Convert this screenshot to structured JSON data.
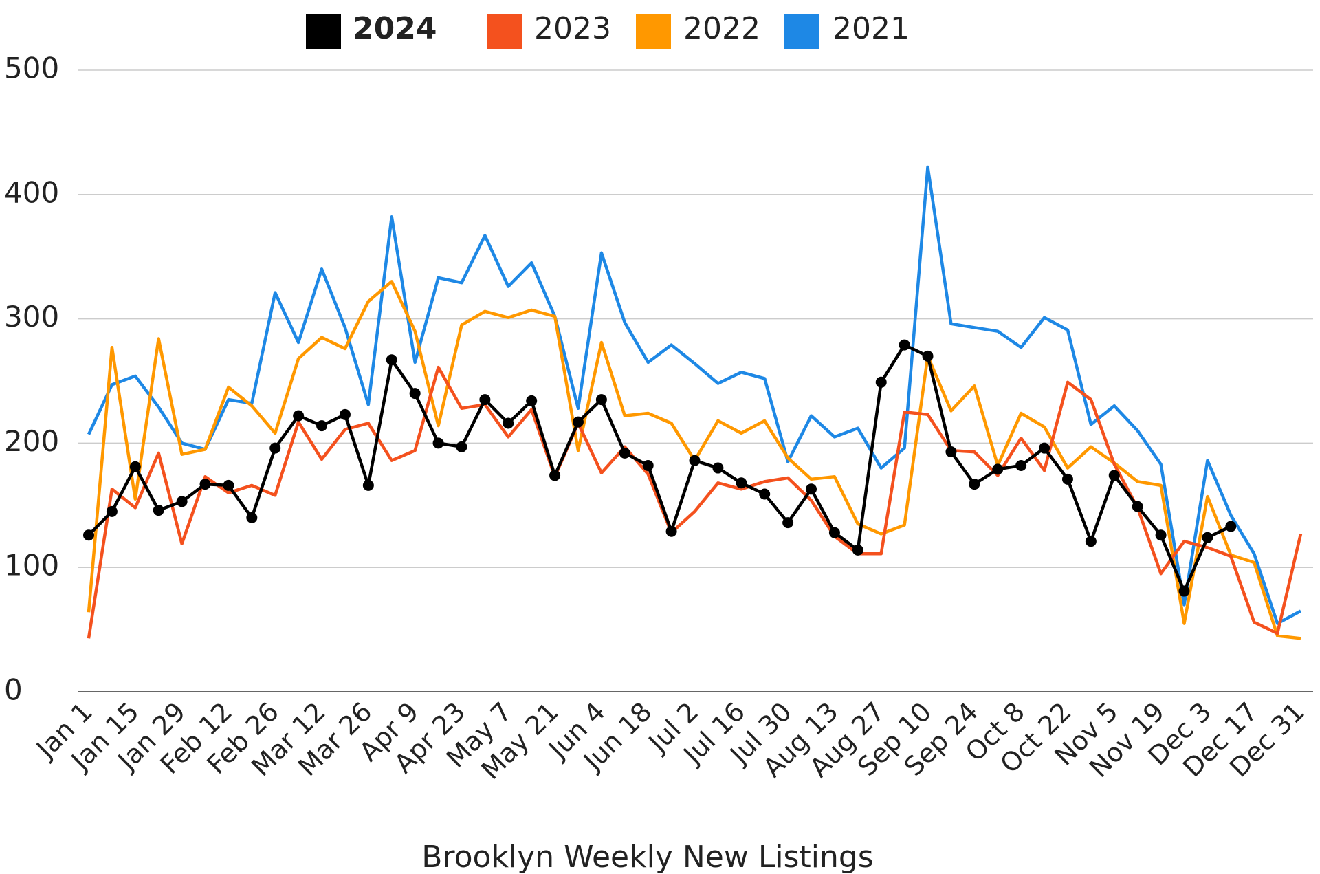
{
  "chart_data": {
    "type": "line",
    "title": "Brooklyn Weekly New Listings",
    "categories": [
      "Jan 1",
      null,
      "Jan 15",
      null,
      "Jan 29",
      null,
      "Feb 12",
      null,
      "Feb 26",
      null,
      "Mar 12",
      null,
      "Mar 26",
      null,
      "Apr 9",
      null,
      "Apr 23",
      null,
      "May 7",
      null,
      "May 21",
      null,
      "Jun 4",
      null,
      "Jun 18",
      null,
      "Jul 2",
      null,
      "Jul 16",
      null,
      "Jul 30",
      null,
      "Aug 13",
      null,
      "Aug 27",
      null,
      "Sep 10",
      null,
      "Sep 24",
      null,
      "Oct 8",
      null,
      "Oct 22",
      null,
      "Nov 5",
      null,
      "Nov 19",
      null,
      "Dec 3",
      null,
      "Dec 17",
      null,
      "Dec 31"
    ],
    "series": [
      {
        "name": "2024",
        "color": "#000000",
        "markers": true,
        "values": [
          126,
          145,
          181,
          146,
          153,
          167,
          166,
          140,
          196,
          222,
          214,
          223,
          166,
          267,
          240,
          200,
          197,
          235,
          216,
          234,
          174,
          217,
          235,
          192,
          182,
          129,
          186,
          180,
          168,
          159,
          136,
          163,
          128,
          114,
          249,
          279,
          270,
          193,
          167,
          179,
          182,
          196,
          171,
          121,
          174,
          149,
          126,
          81,
          124,
          133,
          null,
          null,
          null
        ]
      },
      {
        "name": "2023",
        "color": "#f4511e",
        "markers": false,
        "values": [
          43,
          163,
          148,
          192,
          119,
          173,
          160,
          166,
          158,
          217,
          187,
          211,
          216,
          186,
          194,
          261,
          228,
          231,
          205,
          227,
          173,
          216,
          176,
          197,
          175,
          128,
          145,
          168,
          163,
          169,
          172,
          154,
          125,
          111,
          111,
          225,
          223,
          194,
          193,
          174,
          204,
          178,
          249,
          235,
          183,
          148,
          95,
          121,
          116,
          109,
          56,
          47,
          127
        ]
      },
      {
        "name": "2022",
        "color": "#ff9800",
        "markers": false,
        "values": [
          64,
          277,
          155,
          284,
          191,
          195,
          245,
          230,
          208,
          268,
          285,
          276,
          314,
          330,
          290,
          214,
          295,
          306,
          301,
          307,
          302,
          194,
          281,
          222,
          224,
          216,
          186,
          218,
          208,
          218,
          188,
          171,
          173,
          135,
          127,
          134,
          270,
          226,
          246,
          182,
          224,
          213,
          180,
          197,
          184,
          169,
          166,
          55,
          157,
          110,
          104,
          45,
          43
        ]
      },
      {
        "name": "2021",
        "color": "#1e88e5",
        "markers": false,
        "values": [
          207,
          247,
          254,
          229,
          200,
          195,
          235,
          232,
          321,
          281,
          340,
          293,
          231,
          382,
          265,
          333,
          329,
          367,
          326,
          345,
          302,
          228,
          353,
          297,
          265,
          279,
          264,
          248,
          257,
          252,
          185,
          222,
          205,
          212,
          180,
          196,
          422,
          296,
          293,
          290,
          277,
          301,
          291,
          215,
          230,
          210,
          183,
          70,
          186,
          142,
          111,
          55,
          65
        ]
      }
    ],
    "ylim": [
      0,
      500
    ],
    "yticks": [
      0,
      100,
      200,
      300,
      400,
      500
    ],
    "grid": true,
    "legend": "top"
  }
}
